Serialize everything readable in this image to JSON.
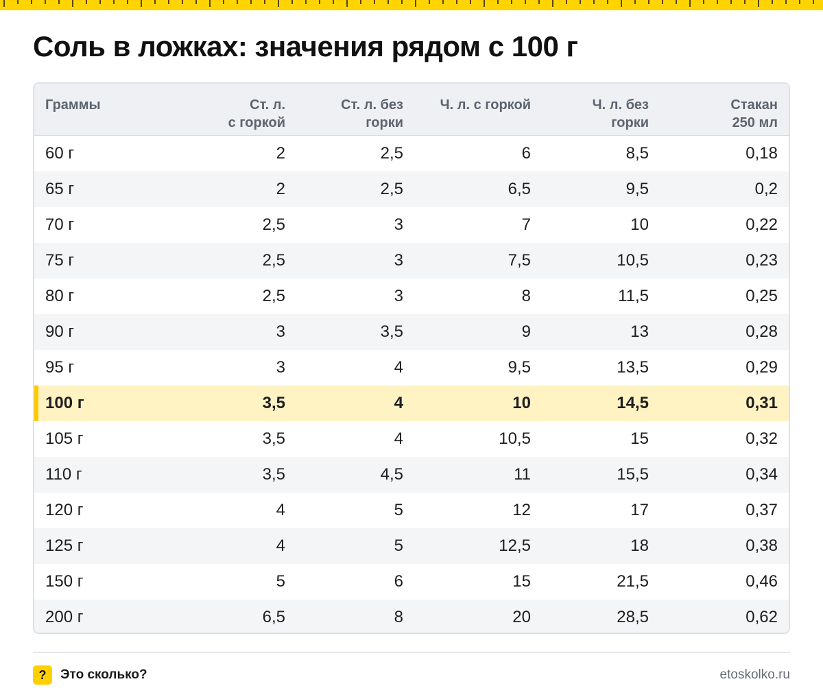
{
  "title": "Соль в ложках: значения рядом с 100 г",
  "colors": {
    "accent": "#ffd400",
    "highlight_row": "#fff3c4",
    "highlight_bar": "#ffc800"
  },
  "footer": {
    "badge": "?",
    "brand": "Это сколько?",
    "site": "etoskolko.ru"
  },
  "chart_data": {
    "type": "table",
    "columns": [
      [
        "Граммы"
      ],
      [
        "Ст. л.",
        "с горкой"
      ],
      [
        "Ст. л. без",
        "горки"
      ],
      [
        "Ч. л. с горкой"
      ],
      [
        "Ч. л. без",
        "горки"
      ],
      [
        "Стакан",
        "250 мл"
      ]
    ],
    "highlight_row": 7,
    "rows": [
      [
        "60 г",
        "2",
        "2,5",
        "6",
        "8,5",
        "0,18"
      ],
      [
        "65 г",
        "2",
        "2,5",
        "6,5",
        "9,5",
        "0,2"
      ],
      [
        "70 г",
        "2,5",
        "3",
        "7",
        "10",
        "0,22"
      ],
      [
        "75 г",
        "2,5",
        "3",
        "7,5",
        "10,5",
        "0,23"
      ],
      [
        "80 г",
        "2,5",
        "3",
        "8",
        "11,5",
        "0,25"
      ],
      [
        "90 г",
        "3",
        "3,5",
        "9",
        "13",
        "0,28"
      ],
      [
        "95 г",
        "3",
        "4",
        "9,5",
        "13,5",
        "0,29"
      ],
      [
        "100 г",
        "3,5",
        "4",
        "10",
        "14,5",
        "0,31"
      ],
      [
        "105 г",
        "3,5",
        "4",
        "10,5",
        "15",
        "0,32"
      ],
      [
        "110 г",
        "3,5",
        "4,5",
        "11",
        "15,5",
        "0,34"
      ],
      [
        "120 г",
        "4",
        "5",
        "12",
        "17",
        "0,37"
      ],
      [
        "125 г",
        "4",
        "5",
        "12,5",
        "18",
        "0,38"
      ],
      [
        "150 г",
        "5",
        "6",
        "15",
        "21,5",
        "0,46"
      ],
      [
        "200 г",
        "6,5",
        "8",
        "20",
        "28,5",
        "0,62"
      ]
    ]
  }
}
